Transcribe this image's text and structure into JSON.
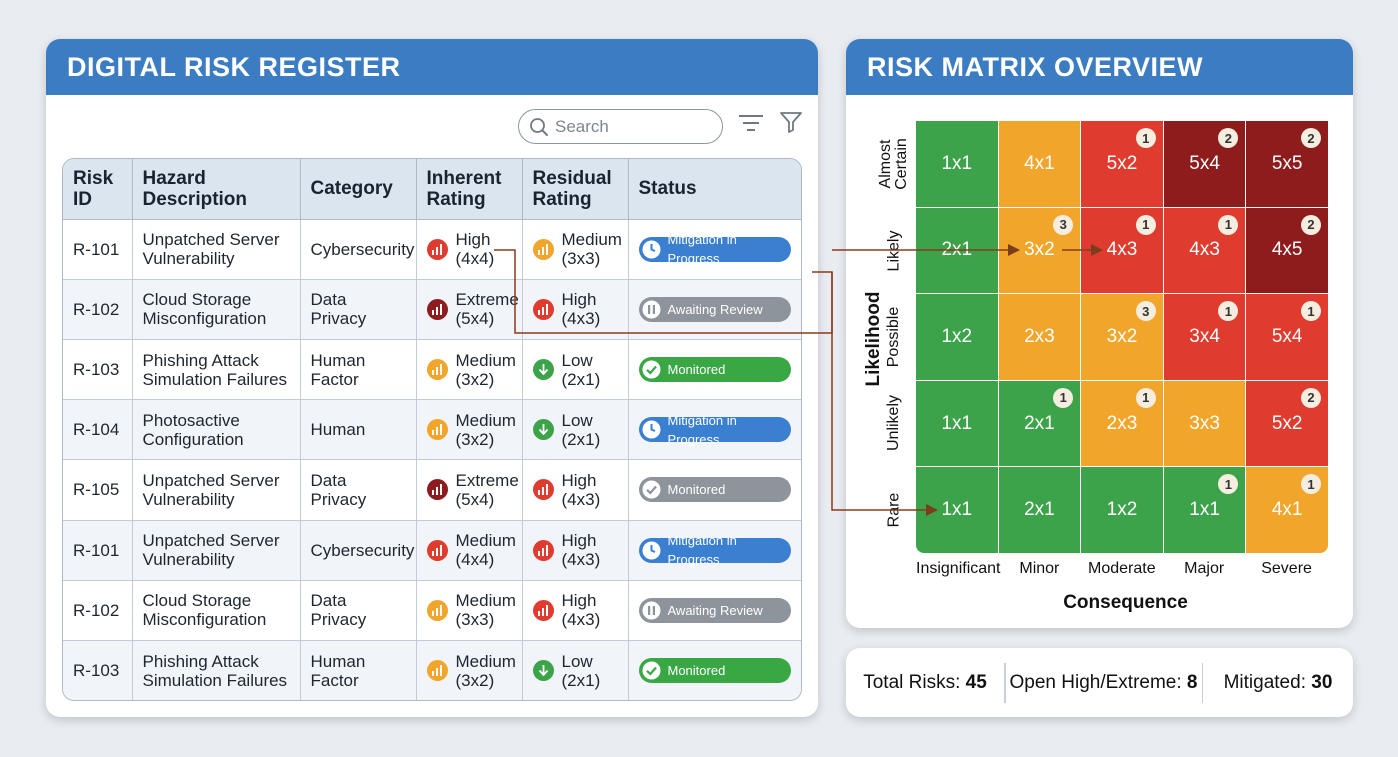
{
  "register": {
    "title": "DIGITAL RISK REGISTER",
    "search_placeholder": "Search",
    "columns": [
      "Risk ID",
      "Hazard Description",
      "Category",
      "Inherent Rating",
      "Residual Rating",
      "Status"
    ],
    "rows": [
      {
        "id": "R-101",
        "desc": "Unpatched Server Vulnerability",
        "cat": "Cybersecurity",
        "inh": {
          "level": "High",
          "score": "(4x4)",
          "color": "#e03b2f"
        },
        "res": {
          "level": "Medium",
          "score": "(3x3)",
          "color": "#f1a52b"
        },
        "status": {
          "text": "Mitigation in Progress",
          "type": "progress"
        }
      },
      {
        "id": "R-102",
        "desc": "Cloud Storage Misconfiguration",
        "cat": "Data Privacy",
        "inh": {
          "level": "Extreme",
          "score": "(5x4)",
          "color": "#8e1c1c"
        },
        "res": {
          "level": "High",
          "score": "(4x3)",
          "color": "#e03b2f"
        },
        "status": {
          "text": "Awaiting Review",
          "type": "review"
        }
      },
      {
        "id": "R-103",
        "desc": "Phishing Attack Simulation Failures",
        "cat": "Human Factor",
        "inh": {
          "level": "Medium",
          "score": "(3x2)",
          "color": "#f1a52b"
        },
        "res": {
          "level": "Low",
          "score": "(2x1)",
          "color": "#3da34a"
        },
        "status": {
          "text": "Monitored",
          "type": "monitored"
        }
      },
      {
        "id": "R-104",
        "desc": "Photosactive Configuration",
        "cat": "Human",
        "inh": {
          "level": "Medium",
          "score": "(3x2)",
          "color": "#f1a52b"
        },
        "res": {
          "level": "Low",
          "score": "(2x1)",
          "color": "#3da34a"
        },
        "status": {
          "text": "Mitigation in Progress",
          "type": "progress"
        }
      },
      {
        "id": "R-105",
        "desc": "Unpatched Server Vulnerability",
        "cat": "Data Privacy",
        "inh": {
          "level": "Extreme",
          "score": "(5x4)",
          "color": "#8e1c1c"
        },
        "res": {
          "level": "High",
          "score": "(4x3)",
          "color": "#e03b2f"
        },
        "status": {
          "text": "Monitored",
          "type": "monitored-grey"
        }
      },
      {
        "id": "R-101",
        "desc": "Unpatched Server Vulnerability",
        "cat": "Cybersecurity",
        "inh": {
          "level": "Medium",
          "score": "(4x4)",
          "color": "#e03b2f"
        },
        "res": {
          "level": "High",
          "score": "(4x3)",
          "color": "#e03b2f"
        },
        "status": {
          "text": "Mitigation in Progress",
          "type": "progress"
        }
      },
      {
        "id": "R-102",
        "desc": "Cloud Storage Misconfiguration",
        "cat": "Data Privacy",
        "inh": {
          "level": "Medium",
          "score": "(3x3)",
          "color": "#f1a52b"
        },
        "res": {
          "level": "High",
          "score": "(4x3)",
          "color": "#e03b2f"
        },
        "status": {
          "text": "Awaiting Review",
          "type": "review"
        }
      },
      {
        "id": "R-103",
        "desc": "Phishing Attack Simulation Failures",
        "cat": "Human Factor",
        "inh": {
          "level": "Medium",
          "score": "(3x2)",
          "color": "#f1a52b"
        },
        "res": {
          "level": "Low",
          "score": "(2x1)",
          "color": "#3da34a"
        },
        "status": {
          "text": "Monitored",
          "type": "monitored"
        }
      }
    ]
  },
  "matrix": {
    "title": "RISK MATRIX OVERVIEW",
    "y_title": "Likelihood",
    "x_title": "Consequence",
    "likelihood_labels": [
      "Almost Certain",
      "Likely",
      "Possible",
      "Unlikely",
      "Rare"
    ],
    "consequence_labels": [
      "Insignificant",
      "Minor",
      "Moderate",
      "Major",
      "Severe"
    ],
    "cells": [
      [
        {
          "t": "1x1",
          "c": "#3da34a"
        },
        {
          "t": "4x1",
          "c": "#f1a52b"
        },
        {
          "t": "5x2",
          "c": "#e03b2f",
          "b": "1"
        },
        {
          "t": "5x4",
          "c": "#8e1c1c",
          "b": "2"
        },
        {
          "t": "5x5",
          "c": "#8e1c1c",
          "b": "2"
        }
      ],
      [
        {
          "t": "2x1",
          "c": "#3da34a"
        },
        {
          "t": "3x2",
          "c": "#f1a52b",
          "b": "3"
        },
        {
          "t": "4x3",
          "c": "#e03b2f",
          "b": "1"
        },
        {
          "t": "4x3",
          "c": "#e03b2f",
          "b": "1"
        },
        {
          "t": "4x5",
          "c": "#8e1c1c",
          "b": "2"
        }
      ],
      [
        {
          "t": "1x2",
          "c": "#3da34a"
        },
        {
          "t": "2x3",
          "c": "#f1a52b"
        },
        {
          "t": "3x2",
          "c": "#f1a52b",
          "b": "3"
        },
        {
          "t": "3x4",
          "c": "#e03b2f",
          "b": "1"
        },
        {
          "t": "5x4",
          "c": "#e03b2f",
          "b": "1"
        }
      ],
      [
        {
          "t": "1x1",
          "c": "#3da34a"
        },
        {
          "t": "2x1",
          "c": "#3da34a",
          "b": "1"
        },
        {
          "t": "2x3",
          "c": "#f1a52b",
          "b": "1"
        },
        {
          "t": "3x3",
          "c": "#f1a52b"
        },
        {
          "t": "5x2",
          "c": "#e03b2f",
          "b": "2"
        }
      ],
      [
        {
          "t": "1x1",
          "c": "#3da34a"
        },
        {
          "t": "2x1",
          "c": "#3da34a"
        },
        {
          "t": "1x2",
          "c": "#3da34a"
        },
        {
          "t": "1x1",
          "c": "#3da34a",
          "b": "1"
        },
        {
          "t": "4x1",
          "c": "#f1a52b",
          "b": "1"
        }
      ]
    ]
  },
  "stats": {
    "total_label": "Total Risks:",
    "total_value": "45",
    "open_label": "Open High/Extreme:",
    "open_value": "8",
    "mitigated_label": "Mitigated:",
    "mitigated_value": "30"
  },
  "status_colors": {
    "progress": "#3a7fd0",
    "review": "#8e949b",
    "monitored": "#3aa745",
    "monitored-grey": "#8e949b"
  }
}
